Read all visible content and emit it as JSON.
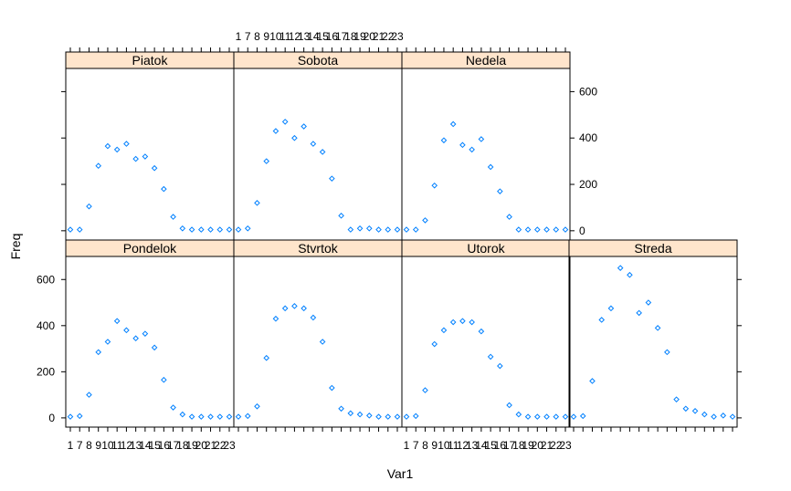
{
  "chart_data": {
    "type": "scatter",
    "layout": "lattice-panels-4x2",
    "xlabel": "Var1",
    "ylabel": "Freq",
    "ylim": [
      -40,
      700
    ],
    "y_ticks": [
      0,
      200,
      400,
      600
    ],
    "x_categories": [
      1,
      7,
      8,
      9,
      10,
      11,
      12,
      13,
      14,
      15,
      16,
      17,
      18,
      19,
      20,
      21,
      22,
      23
    ],
    "x_tick_labels": [
      "1",
      "7",
      "8",
      "9",
      "10",
      "11",
      "12",
      "13",
      "14",
      "15",
      "16",
      "17",
      "18",
      "19",
      "20",
      "21",
      "22",
      "23"
    ],
    "marker": "diamond",
    "marker_color": "#0080ff",
    "strip_color": "#ffe5cc",
    "panels": [
      {
        "name": "Pondelok",
        "row": "bottom",
        "col": 1,
        "values": [
          5,
          8,
          100,
          285,
          330,
          420,
          380,
          345,
          365,
          305,
          165,
          45,
          15,
          5,
          5,
          5,
          5,
          5
        ]
      },
      {
        "name": "Stvrtok",
        "row": "bottom",
        "col": 2,
        "values": [
          5,
          8,
          50,
          260,
          430,
          475,
          485,
          475,
          435,
          330,
          130,
          40,
          20,
          15,
          10,
          5,
          5,
          5
        ]
      },
      {
        "name": "Utorok",
        "row": "bottom",
        "col": 3,
        "values": [
          5,
          8,
          120,
          320,
          380,
          415,
          420,
          415,
          375,
          265,
          225,
          55,
          15,
          5,
          5,
          5,
          5,
          5
        ]
      },
      {
        "name": "Streda",
        "row": "bottom",
        "col": 4,
        "values": [
          5,
          8,
          160,
          425,
          475,
          650,
          620,
          455,
          500,
          390,
          285,
          80,
          40,
          30,
          15,
          5,
          10,
          5
        ]
      },
      {
        "name": "Piatok",
        "row": "top",
        "col": 1,
        "values": [
          5,
          5,
          105,
          280,
          365,
          350,
          375,
          310,
          320,
          270,
          180,
          60,
          10,
          5,
          5,
          5,
          5,
          5
        ]
      },
      {
        "name": "Sobota",
        "row": "top",
        "col": 2,
        "values": [
          5,
          10,
          120,
          300,
          430,
          470,
          400,
          450,
          375,
          340,
          225,
          65,
          5,
          10,
          10,
          5,
          5,
          5
        ]
      },
      {
        "name": "Nedela",
        "row": "top",
        "col": 3,
        "values": [
          5,
          5,
          45,
          195,
          390,
          460,
          370,
          350,
          395,
          275,
          170,
          60,
          5,
          5,
          5,
          5,
          5,
          5
        ]
      }
    ]
  }
}
